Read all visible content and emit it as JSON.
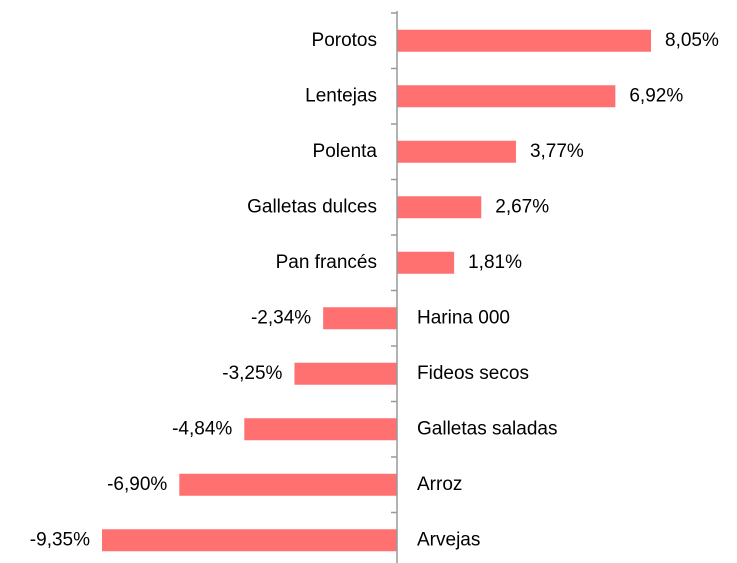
{
  "chart_data": {
    "type": "bar",
    "orientation": "horizontal",
    "categories": [
      "Porotos",
      "Lentejas",
      "Polenta",
      "Galletas dulces",
      "Pan francés",
      "Harina 000",
      "Fideos secos",
      "Galletas saladas",
      "Arroz",
      "Arvejas"
    ],
    "values": [
      8.05,
      6.92,
      3.77,
      2.67,
      1.81,
      -2.34,
      -3.25,
      -4.84,
      -6.9,
      -9.35
    ],
    "value_labels": [
      "8,05%",
      "6,92%",
      "3,77%",
      "2,67%",
      "1,81%",
      "-2,34%",
      "-3,25%",
      "-4,84%",
      "-6,90%",
      "-9,35%"
    ],
    "color": "#ff7070"
  }
}
